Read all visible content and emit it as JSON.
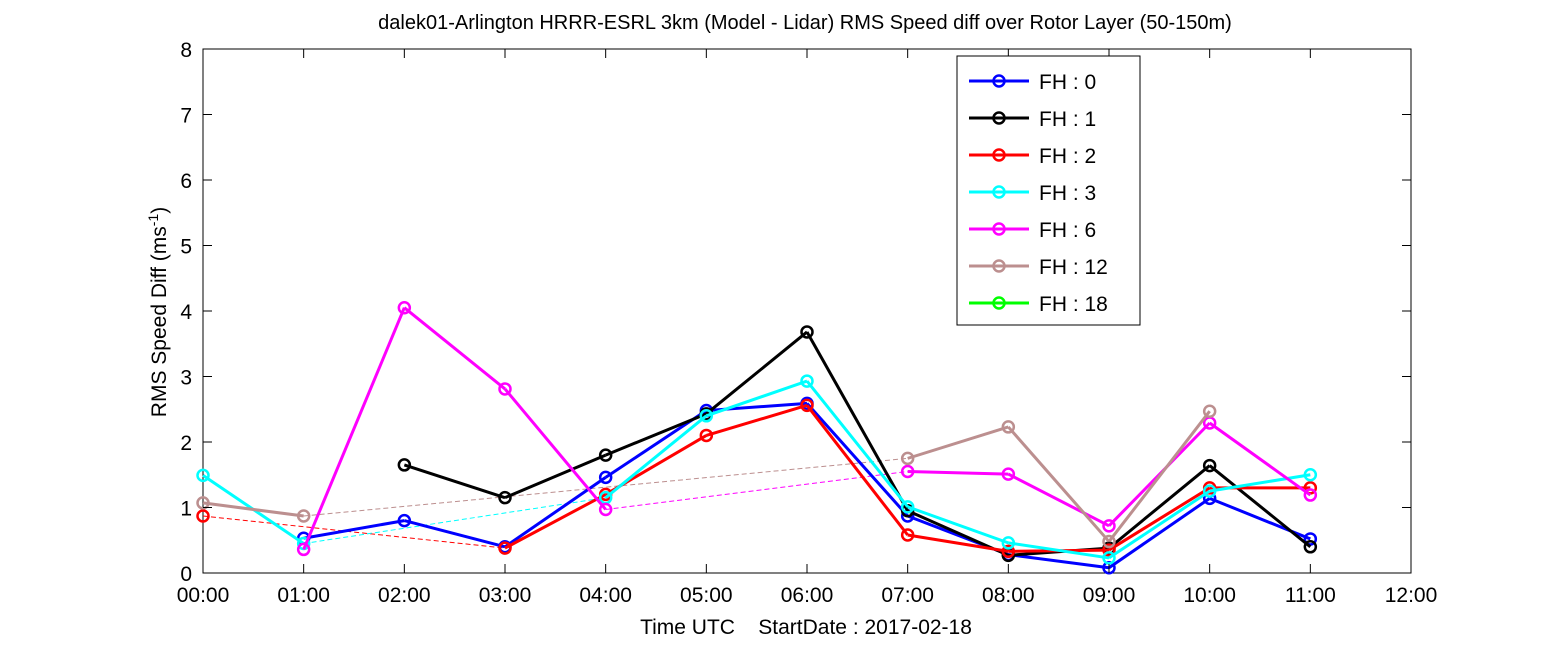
{
  "chart_data": {
    "type": "line",
    "title": "dalek01-Arlington HRRR-ESRL 3km (Model - Lidar) RMS Speed diff over Rotor Layer (50-150m)",
    "xlabel": "Time UTC    StartDate : 2017-02-18",
    "ylabel": "RMS Speed Diff (ms",
    "ylabel_sup": "-1",
    "ylabel_close": ")",
    "xlim": [
      0,
      12
    ],
    "ylim": [
      0,
      8
    ],
    "x_tick_labels": [
      "00:00",
      "01:00",
      "02:00",
      "03:00",
      "04:00",
      "05:00",
      "06:00",
      "07:00",
      "08:00",
      "09:00",
      "10:00",
      "11:00",
      "12:00"
    ],
    "y_tick_labels": [
      "0",
      "1",
      "2",
      "3",
      "4",
      "5",
      "6",
      "7",
      "8"
    ],
    "legend_position": "top-right",
    "series": [
      {
        "name": "FH : 0",
        "color": "#0000ff",
        "x": [
          1,
          2,
          3,
          4,
          5,
          6,
          7,
          8,
          9,
          10,
          11
        ],
        "values": [
          0.53,
          0.8,
          0.4,
          1.46,
          2.48,
          2.59,
          0.87,
          0.28,
          0.08,
          1.14,
          0.52
        ]
      },
      {
        "name": "FH : 1",
        "color": "#000000",
        "x": [
          2,
          3,
          4,
          5,
          6,
          7,
          8,
          9,
          10,
          11
        ],
        "values": [
          1.65,
          1.15,
          1.8,
          2.43,
          3.68,
          0.95,
          0.27,
          0.38,
          1.64,
          0.4
        ]
      },
      {
        "name": "FH : 2",
        "color": "#ff0000",
        "x": [
          0,
          3,
          4,
          5,
          6,
          7,
          8,
          9,
          10,
          11
        ],
        "values": [
          0.87,
          0.38,
          1.2,
          2.1,
          2.56,
          0.58,
          0.33,
          0.35,
          1.3,
          1.3
        ]
      },
      {
        "name": "FH : 3",
        "color": "#00ffff",
        "x": [
          0,
          1,
          4,
          5,
          6,
          7,
          8,
          9,
          10,
          11
        ],
        "values": [
          1.49,
          0.45,
          1.15,
          2.4,
          2.93,
          1.01,
          0.46,
          0.23,
          1.25,
          1.5
        ]
      },
      {
        "name": "FH : 6",
        "color": "#ff00ff",
        "x": [
          1,
          2,
          3,
          4,
          7,
          8,
          9,
          10,
          11
        ],
        "values": [
          0.36,
          4.05,
          2.81,
          0.97,
          1.55,
          1.51,
          0.72,
          2.29,
          1.19
        ]
      },
      {
        "name": "FH : 12",
        "color": "#bc8f8f",
        "x": [
          0,
          1,
          7,
          8,
          9,
          10
        ],
        "values": [
          1.07,
          0.87,
          1.75,
          2.23,
          0.48,
          2.47
        ]
      },
      {
        "name": "FH : 18",
        "color": "#00ff00",
        "x": [],
        "values": []
      }
    ]
  }
}
